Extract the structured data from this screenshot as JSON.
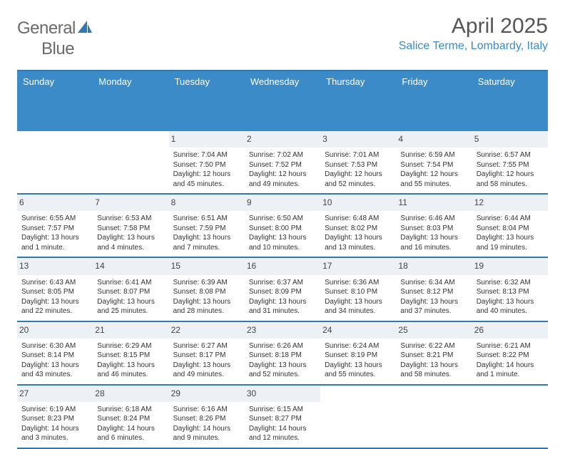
{
  "logo": {
    "text_a": "General",
    "text_b": "Blue"
  },
  "title": "April 2025",
  "location": "Salice Terme, Lombardy, Italy",
  "colors": {
    "header_bg": "#3b8bc9",
    "header_border": "#2f77b5",
    "daynum_bg": "#edf1f5",
    "location_text": "#3b8bc9",
    "logo_sail": "#2f77b5"
  },
  "weekdays": [
    "Sunday",
    "Monday",
    "Tuesday",
    "Wednesday",
    "Thursday",
    "Friday",
    "Saturday"
  ],
  "weeks": [
    [
      null,
      null,
      {
        "d": "1",
        "sr": "Sunrise: 7:04 AM",
        "ss": "Sunset: 7:50 PM",
        "dl": "Daylight: 12 hours and 45 minutes."
      },
      {
        "d": "2",
        "sr": "Sunrise: 7:02 AM",
        "ss": "Sunset: 7:52 PM",
        "dl": "Daylight: 12 hours and 49 minutes."
      },
      {
        "d": "3",
        "sr": "Sunrise: 7:01 AM",
        "ss": "Sunset: 7:53 PM",
        "dl": "Daylight: 12 hours and 52 minutes."
      },
      {
        "d": "4",
        "sr": "Sunrise: 6:59 AM",
        "ss": "Sunset: 7:54 PM",
        "dl": "Daylight: 12 hours and 55 minutes."
      },
      {
        "d": "5",
        "sr": "Sunrise: 6:57 AM",
        "ss": "Sunset: 7:55 PM",
        "dl": "Daylight: 12 hours and 58 minutes."
      }
    ],
    [
      {
        "d": "6",
        "sr": "Sunrise: 6:55 AM",
        "ss": "Sunset: 7:57 PM",
        "dl": "Daylight: 13 hours and 1 minute."
      },
      {
        "d": "7",
        "sr": "Sunrise: 6:53 AM",
        "ss": "Sunset: 7:58 PM",
        "dl": "Daylight: 13 hours and 4 minutes."
      },
      {
        "d": "8",
        "sr": "Sunrise: 6:51 AM",
        "ss": "Sunset: 7:59 PM",
        "dl": "Daylight: 13 hours and 7 minutes."
      },
      {
        "d": "9",
        "sr": "Sunrise: 6:50 AM",
        "ss": "Sunset: 8:00 PM",
        "dl": "Daylight: 13 hours and 10 minutes."
      },
      {
        "d": "10",
        "sr": "Sunrise: 6:48 AM",
        "ss": "Sunset: 8:02 PM",
        "dl": "Daylight: 13 hours and 13 minutes."
      },
      {
        "d": "11",
        "sr": "Sunrise: 6:46 AM",
        "ss": "Sunset: 8:03 PM",
        "dl": "Daylight: 13 hours and 16 minutes."
      },
      {
        "d": "12",
        "sr": "Sunrise: 6:44 AM",
        "ss": "Sunset: 8:04 PM",
        "dl": "Daylight: 13 hours and 19 minutes."
      }
    ],
    [
      {
        "d": "13",
        "sr": "Sunrise: 6:43 AM",
        "ss": "Sunset: 8:05 PM",
        "dl": "Daylight: 13 hours and 22 minutes."
      },
      {
        "d": "14",
        "sr": "Sunrise: 6:41 AM",
        "ss": "Sunset: 8:07 PM",
        "dl": "Daylight: 13 hours and 25 minutes."
      },
      {
        "d": "15",
        "sr": "Sunrise: 6:39 AM",
        "ss": "Sunset: 8:08 PM",
        "dl": "Daylight: 13 hours and 28 minutes."
      },
      {
        "d": "16",
        "sr": "Sunrise: 6:37 AM",
        "ss": "Sunset: 8:09 PM",
        "dl": "Daylight: 13 hours and 31 minutes."
      },
      {
        "d": "17",
        "sr": "Sunrise: 6:36 AM",
        "ss": "Sunset: 8:10 PM",
        "dl": "Daylight: 13 hours and 34 minutes."
      },
      {
        "d": "18",
        "sr": "Sunrise: 6:34 AM",
        "ss": "Sunset: 8:12 PM",
        "dl": "Daylight: 13 hours and 37 minutes."
      },
      {
        "d": "19",
        "sr": "Sunrise: 6:32 AM",
        "ss": "Sunset: 8:13 PM",
        "dl": "Daylight: 13 hours and 40 minutes."
      }
    ],
    [
      {
        "d": "20",
        "sr": "Sunrise: 6:30 AM",
        "ss": "Sunset: 8:14 PM",
        "dl": "Daylight: 13 hours and 43 minutes."
      },
      {
        "d": "21",
        "sr": "Sunrise: 6:29 AM",
        "ss": "Sunset: 8:15 PM",
        "dl": "Daylight: 13 hours and 46 minutes."
      },
      {
        "d": "22",
        "sr": "Sunrise: 6:27 AM",
        "ss": "Sunset: 8:17 PM",
        "dl": "Daylight: 13 hours and 49 minutes."
      },
      {
        "d": "23",
        "sr": "Sunrise: 6:26 AM",
        "ss": "Sunset: 8:18 PM",
        "dl": "Daylight: 13 hours and 52 minutes."
      },
      {
        "d": "24",
        "sr": "Sunrise: 6:24 AM",
        "ss": "Sunset: 8:19 PM",
        "dl": "Daylight: 13 hours and 55 minutes."
      },
      {
        "d": "25",
        "sr": "Sunrise: 6:22 AM",
        "ss": "Sunset: 8:21 PM",
        "dl": "Daylight: 13 hours and 58 minutes."
      },
      {
        "d": "26",
        "sr": "Sunrise: 6:21 AM",
        "ss": "Sunset: 8:22 PM",
        "dl": "Daylight: 14 hours and 1 minute."
      }
    ],
    [
      {
        "d": "27",
        "sr": "Sunrise: 6:19 AM",
        "ss": "Sunset: 8:23 PM",
        "dl": "Daylight: 14 hours and 3 minutes."
      },
      {
        "d": "28",
        "sr": "Sunrise: 6:18 AM",
        "ss": "Sunset: 8:24 PM",
        "dl": "Daylight: 14 hours and 6 minutes."
      },
      {
        "d": "29",
        "sr": "Sunrise: 6:16 AM",
        "ss": "Sunset: 8:26 PM",
        "dl": "Daylight: 14 hours and 9 minutes."
      },
      {
        "d": "30",
        "sr": "Sunrise: 6:15 AM",
        "ss": "Sunset: 8:27 PM",
        "dl": "Daylight: 14 hours and 12 minutes."
      },
      null,
      null,
      null
    ]
  ]
}
